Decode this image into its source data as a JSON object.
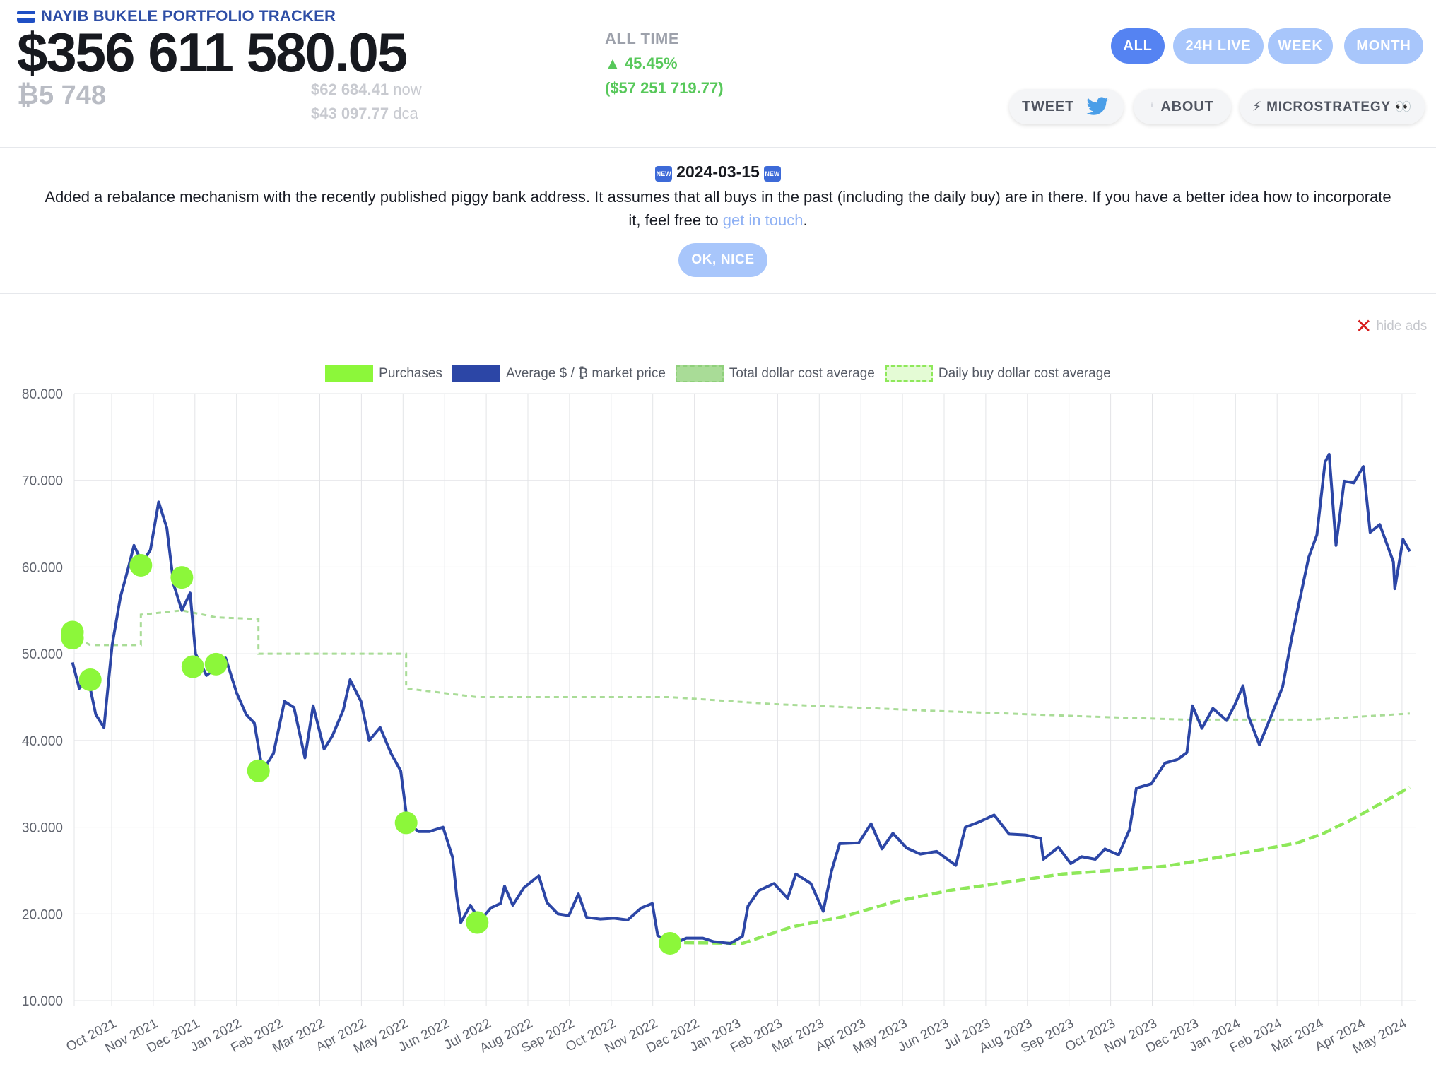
{
  "header": {
    "brand": "NAYIB BUKELE PORTFOLIO TRACKER",
    "portfolio_value": "$356 611 580.05",
    "btc_amount": "₿5 748",
    "price_now_value": "$62 684.41",
    "price_now_suffix": "now",
    "price_dca_value": "$43 097.77",
    "price_dca_suffix": "dca",
    "alltime_label": "ALL TIME",
    "alltime_pct": "▲ 45.45%",
    "alltime_abs": "($57 251 719.77)",
    "flag_colors": [
      "#1f4fc4",
      "#ffffff",
      "#1f4fc4"
    ]
  },
  "range_tabs": [
    {
      "label": "ALL",
      "active": true
    },
    {
      "label": "24H LIVE",
      "active": false
    },
    {
      "label": "WEEK",
      "active": false
    },
    {
      "label": "MONTH",
      "active": false
    }
  ],
  "actions": {
    "tweet": "TWEET",
    "about": "ABOUT",
    "about_icon": "info-icon",
    "microstrategy": "⚡ MICROSTRATEGY 👀"
  },
  "announcement": {
    "date": "2024-03-15",
    "badge": "NEW",
    "text_before": "Added a rebalance mechanism with the recently published piggy bank address. It assumes that all buys in the past (including the daily buy) are in there. If you have a better idea how to incorporate it, feel free to",
    "link_text": "get in touch",
    "text_after": ".",
    "ok_button": "OK, NICE"
  },
  "ads": {
    "hide_label": "hide ads"
  },
  "colors": {
    "accent": "#5583f2",
    "accent_light": "#a8c6fb",
    "price_line": "#2c46a6",
    "purchases": "#8cf73a",
    "total_dca": "#a9dc97",
    "daily_dca": "#8ee85a",
    "gain": "#57c85a"
  },
  "chart_data": {
    "type": "line",
    "title": "",
    "xlabel": "",
    "ylabel": "",
    "ylim": [
      10000,
      80000
    ],
    "yticks": [
      "10.000",
      "20.000",
      "30.000",
      "40.000",
      "50.000",
      "60.000",
      "70.000",
      "80.000"
    ],
    "xticks": [
      "Oct 2021",
      "Nov 2021",
      "Dec 2021",
      "Jan 2022",
      "Feb 2022",
      "Mar 2022",
      "Apr 2022",
      "May 2022",
      "Jun 2022",
      "Jul 2022",
      "Aug 2022",
      "Sep 2022",
      "Oct 2022",
      "Nov 2022",
      "Dec 2022",
      "Jan 2023",
      "Feb 2023",
      "Mar 2023",
      "Apr 2023",
      "May 2023",
      "Jun 2023",
      "Jul 2023",
      "Aug 2023",
      "Sep 2023",
      "Oct 2023",
      "Nov 2023",
      "Dec 2023",
      "Jan 2024",
      "Feb 2024",
      "Mar 2024",
      "Apr 2024",
      "May 2024"
    ],
    "x_range": [
      "2021-09-07",
      "2024-05-12"
    ],
    "grid": true,
    "legend_position": "top",
    "legend": [
      "Purchases",
      "Average $ / ₿ market price",
      "Total dollar cost average",
      "Daily buy dollar cost average"
    ],
    "series": [
      {
        "name": "Average $ / ₿ market price",
        "style": "line",
        "points": [
          [
            "2021-09-07",
            49000
          ],
          [
            "2021-09-12",
            46000
          ],
          [
            "2021-09-18",
            47500
          ],
          [
            "2021-09-24",
            43000
          ],
          [
            "2021-09-30",
            41500
          ],
          [
            "2021-10-06",
            51000
          ],
          [
            "2021-10-12",
            56500
          ],
          [
            "2021-10-18",
            60000
          ],
          [
            "2021-10-22",
            62500
          ],
          [
            "2021-10-28",
            60500
          ],
          [
            "2021-11-03",
            62000
          ],
          [
            "2021-11-09",
            67500
          ],
          [
            "2021-11-15",
            64500
          ],
          [
            "2021-11-20",
            58000
          ],
          [
            "2021-11-26",
            55000
          ],
          [
            "2021-12-02",
            57000
          ],
          [
            "2021-12-06",
            50000
          ],
          [
            "2021-12-14",
            47500
          ],
          [
            "2021-12-22",
            48500
          ],
          [
            "2021-12-28",
            49500
          ],
          [
            "2022-01-05",
            45500
          ],
          [
            "2022-01-12",
            43000
          ],
          [
            "2022-01-18",
            42000
          ],
          [
            "2022-01-24",
            36500
          ],
          [
            "2022-02-01",
            38500
          ],
          [
            "2022-02-09",
            44500
          ],
          [
            "2022-02-16",
            43800
          ],
          [
            "2022-02-24",
            38000
          ],
          [
            "2022-03-02",
            44000
          ],
          [
            "2022-03-10",
            39000
          ],
          [
            "2022-03-16",
            40500
          ],
          [
            "2022-03-24",
            43500
          ],
          [
            "2022-03-29",
            47000
          ],
          [
            "2022-04-06",
            44500
          ],
          [
            "2022-04-12",
            40000
          ],
          [
            "2022-04-20",
            41500
          ],
          [
            "2022-04-28",
            38500
          ],
          [
            "2022-05-05",
            36500
          ],
          [
            "2022-05-10",
            30500
          ],
          [
            "2022-05-18",
            29500
          ],
          [
            "2022-05-26",
            29500
          ],
          [
            "2022-06-05",
            30000
          ],
          [
            "2022-06-12",
            26500
          ],
          [
            "2022-06-15",
            22000
          ],
          [
            "2022-06-18",
            19000
          ],
          [
            "2022-06-25",
            21000
          ],
          [
            "2022-07-02",
            19200
          ],
          [
            "2022-07-10",
            20700
          ],
          [
            "2022-07-17",
            21200
          ],
          [
            "2022-07-20",
            23200
          ],
          [
            "2022-07-26",
            21000
          ],
          [
            "2022-08-03",
            23000
          ],
          [
            "2022-08-14",
            24400
          ],
          [
            "2022-08-20",
            21300
          ],
          [
            "2022-08-28",
            20000
          ],
          [
            "2022-09-05",
            19800
          ],
          [
            "2022-09-12",
            22300
          ],
          [
            "2022-09-18",
            19600
          ],
          [
            "2022-09-28",
            19400
          ],
          [
            "2022-10-08",
            19500
          ],
          [
            "2022-10-18",
            19300
          ],
          [
            "2022-10-28",
            20700
          ],
          [
            "2022-11-05",
            21200
          ],
          [
            "2022-11-09",
            17500
          ],
          [
            "2022-11-20",
            16500
          ],
          [
            "2022-11-30",
            17200
          ],
          [
            "2022-12-12",
            17200
          ],
          [
            "2022-12-20",
            16800
          ],
          [
            "2023-01-01",
            16600
          ],
          [
            "2023-01-10",
            17400
          ],
          [
            "2023-01-14",
            20900
          ],
          [
            "2023-01-22",
            22700
          ],
          [
            "2023-02-02",
            23500
          ],
          [
            "2023-02-12",
            21800
          ],
          [
            "2023-02-18",
            24600
          ],
          [
            "2023-03-01",
            23500
          ],
          [
            "2023-03-10",
            20300
          ],
          [
            "2023-03-16",
            24900
          ],
          [
            "2023-03-22",
            28100
          ],
          [
            "2023-04-05",
            28200
          ],
          [
            "2023-04-14",
            30400
          ],
          [
            "2023-04-22",
            27500
          ],
          [
            "2023-04-30",
            29300
          ],
          [
            "2023-05-10",
            27600
          ],
          [
            "2023-05-20",
            26900
          ],
          [
            "2023-06-01",
            27200
          ],
          [
            "2023-06-15",
            25600
          ],
          [
            "2023-06-22",
            30000
          ],
          [
            "2023-07-02",
            30600
          ],
          [
            "2023-07-13",
            31400
          ],
          [
            "2023-07-24",
            29200
          ],
          [
            "2023-08-05",
            29100
          ],
          [
            "2023-08-16",
            28700
          ],
          [
            "2023-08-18",
            26300
          ],
          [
            "2023-08-29",
            27700
          ],
          [
            "2023-09-07",
            25800
          ],
          [
            "2023-09-15",
            26600
          ],
          [
            "2023-09-25",
            26300
          ],
          [
            "2023-10-02",
            27500
          ],
          [
            "2023-10-12",
            26800
          ],
          [
            "2023-10-20",
            29700
          ],
          [
            "2023-10-25",
            34500
          ],
          [
            "2023-11-05",
            35000
          ],
          [
            "2023-11-15",
            37400
          ],
          [
            "2023-11-24",
            37800
          ],
          [
            "2023-12-01",
            38600
          ],
          [
            "2023-12-05",
            44000
          ],
          [
            "2023-12-12",
            41400
          ],
          [
            "2023-12-20",
            43700
          ],
          [
            "2023-12-30",
            42300
          ],
          [
            "2024-01-05",
            44100
          ],
          [
            "2024-01-11",
            46300
          ],
          [
            "2024-01-15",
            42800
          ],
          [
            "2024-01-23",
            39500
          ],
          [
            "2024-01-31",
            42600
          ],
          [
            "2024-02-09",
            46200
          ],
          [
            "2024-02-16",
            52100
          ],
          [
            "2024-02-28",
            61100
          ],
          [
            "2024-03-05",
            63700
          ],
          [
            "2024-03-11",
            72100
          ],
          [
            "2024-03-14",
            73000
          ],
          [
            "2024-03-19",
            62500
          ],
          [
            "2024-03-25",
            69900
          ],
          [
            "2024-04-01",
            69700
          ],
          [
            "2024-04-08",
            71600
          ],
          [
            "2024-04-13",
            64000
          ],
          [
            "2024-04-20",
            64900
          ],
          [
            "2024-04-30",
            60600
          ],
          [
            "2024-05-01",
            57500
          ],
          [
            "2024-05-07",
            63200
          ],
          [
            "2024-05-12",
            61800
          ]
        ]
      },
      {
        "name": "Total dollar cost average",
        "style": "dashed",
        "points": [
          [
            "2021-09-07",
            51500
          ],
          [
            "2021-09-08",
            52000
          ],
          [
            "2021-09-20",
            51000
          ],
          [
            "2021-10-27",
            51000
          ],
          [
            "2021-10-27",
            54500
          ],
          [
            "2021-11-26",
            55000
          ],
          [
            "2021-12-21",
            54200
          ],
          [
            "2022-01-21",
            54000
          ],
          [
            "2022-01-21",
            50000
          ],
          [
            "2022-05-09",
            50000
          ],
          [
            "2022-05-09",
            46000
          ],
          [
            "2022-06-30",
            45000
          ],
          [
            "2022-11-18",
            45000
          ],
          [
            "2023-02-01",
            44200
          ],
          [
            "2023-06-01",
            43400
          ],
          [
            "2023-10-01",
            42700
          ],
          [
            "2023-12-01",
            42400
          ],
          [
            "2024-03-01",
            42400
          ],
          [
            "2024-05-12",
            43100
          ]
        ]
      },
      {
        "name": "Daily buy dollar cost average",
        "style": "dashed",
        "points": [
          [
            "2022-11-18",
            16700
          ],
          [
            "2023-01-10",
            16600
          ],
          [
            "2023-02-15",
            18500
          ],
          [
            "2023-03-25",
            19700
          ],
          [
            "2023-05-01",
            21400
          ],
          [
            "2023-06-10",
            22700
          ],
          [
            "2023-07-20",
            23600
          ],
          [
            "2023-09-01",
            24600
          ],
          [
            "2023-10-15",
            25100
          ],
          [
            "2023-11-15",
            25500
          ],
          [
            "2023-12-20",
            26400
          ],
          [
            "2024-01-20",
            27300
          ],
          [
            "2024-02-20",
            28200
          ],
          [
            "2024-03-10",
            29300
          ],
          [
            "2024-04-01",
            31000
          ],
          [
            "2024-05-12",
            34600
          ]
        ]
      },
      {
        "name": "Purchases",
        "style": "points",
        "points": [
          [
            "2021-09-07",
            52500
          ],
          [
            "2021-09-07",
            51800
          ],
          [
            "2021-09-20",
            47000
          ],
          [
            "2021-10-27",
            60200
          ],
          [
            "2021-11-26",
            58800
          ],
          [
            "2021-12-04",
            48500
          ],
          [
            "2021-12-21",
            48800
          ],
          [
            "2022-01-21",
            36500
          ],
          [
            "2022-05-09",
            30500
          ],
          [
            "2022-06-30",
            19000
          ],
          [
            "2022-11-18",
            16600
          ]
        ]
      }
    ]
  }
}
